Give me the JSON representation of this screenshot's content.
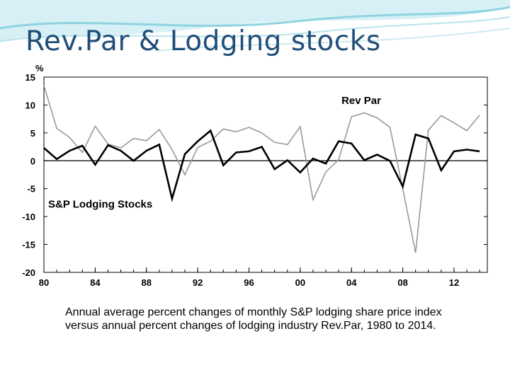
{
  "slide": {
    "title": "Rev.Par & Lodging stocks",
    "caption": "Annual average percent changes of monthly S&P lodging share price index versus annual percent changes of lodging industry Rev.Par, 1980 to 2014."
  },
  "colors": {
    "title": "#1f4e79",
    "wave": "#8fd3e0",
    "revpar_line": "#999999",
    "stocks_line": "#000000"
  },
  "chart_data": {
    "type": "line",
    "unit_label": "%",
    "x": [
      1980,
      1981,
      1982,
      1983,
      1984,
      1985,
      1986,
      1987,
      1988,
      1989,
      1990,
      1991,
      1992,
      1993,
      1994,
      1995,
      1996,
      1997,
      1998,
      1999,
      2000,
      2001,
      2002,
      2003,
      2004,
      2005,
      2006,
      2007,
      2008,
      2009,
      2010,
      2011,
      2012,
      2013,
      2014
    ],
    "x_ticks": [
      "80",
      "84",
      "88",
      "92",
      "96",
      "00",
      "04",
      "08",
      "12"
    ],
    "x_tick_values": [
      1980,
      1984,
      1988,
      1992,
      1996,
      2000,
      2004,
      2008,
      2012
    ],
    "y_ticks": [
      15,
      10,
      5,
      0,
      -5,
      -10,
      -15,
      -20
    ],
    "ylim": [
      -20,
      15
    ],
    "xlim": [
      1980,
      2014.6
    ],
    "series": [
      {
        "name": "Rev Par",
        "values": [
          13.5,
          5.8,
          4.2,
          1.5,
          6.2,
          3.0,
          2.3,
          4.0,
          3.6,
          5.6,
          2.0,
          -2.5,
          2.4,
          3.5,
          5.7,
          5.2,
          6.0,
          5.0,
          3.3,
          2.9,
          6.1,
          -7.0,
          -2.0,
          0.2,
          7.9,
          8.6,
          7.7,
          6.0,
          -5.0,
          -16.5,
          5.5,
          8.1,
          6.8,
          5.4,
          8.2
        ]
      },
      {
        "name": "S&P Lodging Stocks",
        "values": [
          2.3,
          0.3,
          1.8,
          2.7,
          -0.7,
          2.8,
          1.8,
          0.0,
          1.8,
          2.9,
          -6.8,
          1.2,
          3.5,
          5.4,
          -0.8,
          1.5,
          1.7,
          2.5,
          -1.5,
          0.1,
          -2.1,
          0.4,
          -0.5,
          3.5,
          3.1,
          0.1,
          1.1,
          0.0,
          -4.6,
          4.7,
          4.0,
          -1.7,
          1.7,
          2.0,
          1.7
        ]
      }
    ]
  }
}
